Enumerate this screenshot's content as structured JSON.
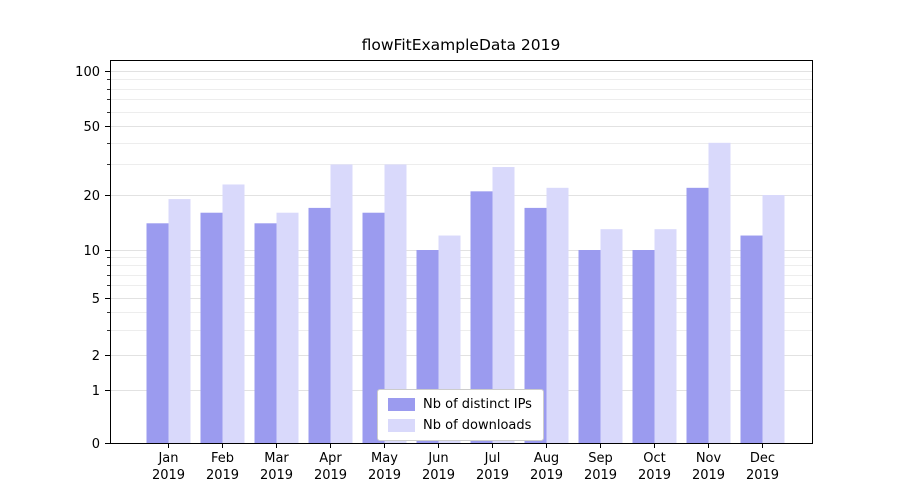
{
  "figure": {
    "title": "flowFitExampleData 2019"
  },
  "chart_data": {
    "type": "bar",
    "title": "flowFitExampleData 2019",
    "xlabel": "",
    "ylabel": "",
    "categories": [
      "Jan 2019",
      "Feb 2019",
      "Mar 2019",
      "Apr 2019",
      "May 2019",
      "Jun 2019",
      "Jul 2019",
      "Aug 2019",
      "Sep 2019",
      "Oct 2019",
      "Nov 2019",
      "Dec 2019"
    ],
    "x_months": [
      "Jan",
      "Feb",
      "Mar",
      "Apr",
      "May",
      "Jun",
      "Jul",
      "Aug",
      "Sep",
      "Oct",
      "Nov",
      "Dec"
    ],
    "x_year": "2019",
    "series": [
      {
        "name": "Nb of distinct IPs",
        "color": "#9b9bef",
        "values": [
          14,
          16,
          14,
          17,
          16,
          10,
          21,
          17,
          10,
          10,
          22,
          12
        ]
      },
      {
        "name": "Nb of downloads",
        "color": "#d9d9fb",
        "values": [
          19,
          23,
          16,
          30,
          30,
          12,
          29,
          22,
          13,
          13,
          40,
          20
        ]
      }
    ],
    "yscale": "log-like with zero baseline",
    "ylim": [
      0,
      100
    ],
    "y_major_ticks": [
      0,
      1,
      2,
      5,
      10,
      20,
      50,
      100
    ],
    "y_minor_ticks": [
      3,
      4,
      6,
      7,
      8,
      9,
      30,
      40,
      60,
      70,
      80,
      90
    ],
    "grid": "horizontal light gray lines",
    "legend_position": "lower center"
  },
  "colors": {
    "background": "#ffffff",
    "bar_distinct_ips": "#9b9bef",
    "bar_downloads": "#d9d9fb",
    "grid_major": "#e2e2e2",
    "grid_minor": "#ededed",
    "axis": "#000000",
    "tick_label": "#000000",
    "legend_border": "#cccccc"
  }
}
